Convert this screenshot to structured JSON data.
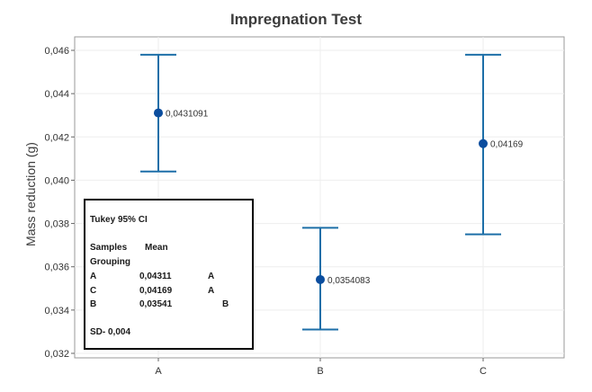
{
  "chart_data": {
    "type": "interval",
    "title": "Impregnation Test",
    "xlabel": "",
    "ylabel": "Mass reduction (g)",
    "ylim": [
      0.032,
      0.046
    ],
    "yticks": [
      0.032,
      0.034,
      0.036,
      0.038,
      0.04,
      0.042,
      0.044,
      0.046
    ],
    "ytick_labels": [
      "0,032",
      "0,034",
      "0,036",
      "0,038",
      "0,040",
      "0,042",
      "0,044",
      "0,046"
    ],
    "categories": [
      "A",
      "B",
      "C"
    ],
    "series": [
      {
        "category": "A",
        "mean": 0.0431091,
        "lower": 0.0404,
        "upper": 0.0458,
        "label": "0,0431091"
      },
      {
        "category": "B",
        "mean": 0.0354083,
        "lower": 0.0331,
        "upper": 0.0378,
        "label": "0,0354083"
      },
      {
        "category": "C",
        "mean": 0.04169,
        "lower": 0.0375,
        "upper": 0.0458,
        "label": "0,04169"
      }
    ],
    "colors": {
      "marker": "#0b4d9e",
      "errorbar": "#1d6fa8",
      "frame": "#9a9a9a",
      "grid": "#eeeeee"
    }
  },
  "legend": {
    "title": "Tukey 95% CI",
    "header_samples": "Samples",
    "header_mean": "Mean",
    "header_grouping": "Grouping",
    "rows": [
      {
        "sample": "A",
        "mean": "0,04311",
        "group": "A"
      },
      {
        "sample": "C",
        "mean": "0,04169",
        "group": "A"
      },
      {
        "sample": "B",
        "mean": "0,03541",
        "group": "B"
      }
    ],
    "sd": "SD- 0,004"
  }
}
